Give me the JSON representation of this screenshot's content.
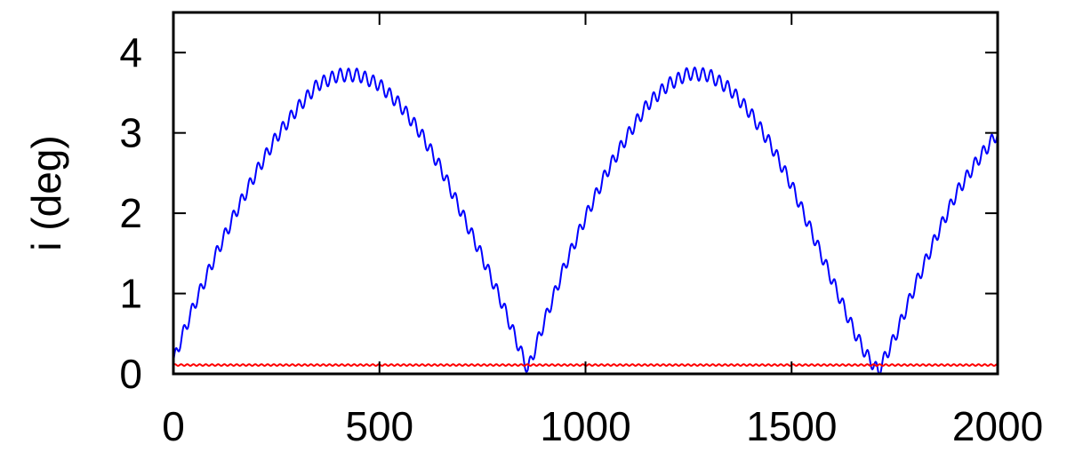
{
  "chart_data": {
    "type": "line",
    "title": "",
    "xlabel": "",
    "ylabel": "i (deg)",
    "xlim": [
      0,
      2000
    ],
    "ylim": [
      0,
      4.5
    ],
    "xticks": [
      0,
      500,
      1000,
      1500,
      2000
    ],
    "xtick_labels": [
      "0",
      "500",
      "1000",
      "1500",
      "2000"
    ],
    "yticks": [
      0,
      1,
      2,
      3,
      4
    ],
    "ytick_labels": [
      "0",
      "1",
      "2",
      "3",
      "4"
    ],
    "grid": false,
    "legend": "none",
    "series": [
      {
        "color": "#0000ff",
        "x": [
          0,
          20,
          50,
          100,
          150,
          200,
          250,
          300,
          350,
          400,
          450,
          500,
          550,
          600,
          650,
          700,
          750,
          800,
          830,
          860,
          900,
          950,
          1000,
          1050,
          1100,
          1150,
          1200,
          1250,
          1300,
          1350,
          1400,
          1450,
          1500,
          1550,
          1600,
          1650,
          1680,
          1710,
          1750,
          1800,
          1850,
          1900,
          1950,
          2000
        ],
        "y": [
          0.15,
          0.45,
          0.85,
          1.45,
          2.0,
          2.5,
          2.95,
          3.3,
          3.6,
          3.72,
          3.72,
          3.6,
          3.35,
          3.0,
          2.55,
          2.0,
          1.45,
          0.85,
          0.45,
          0.05,
          0.65,
          1.35,
          1.95,
          2.5,
          2.95,
          3.35,
          3.6,
          3.74,
          3.72,
          3.55,
          3.25,
          2.85,
          2.35,
          1.75,
          1.15,
          0.55,
          0.25,
          0.03,
          0.45,
          1.1,
          1.7,
          2.25,
          2.65,
          3.0
        ],
        "oscillation_amplitude": 0.08,
        "oscillation_period": 20
      },
      {
        "color": "#ff0000",
        "x": [
          0,
          2000
        ],
        "y": [
          0.11,
          0.11
        ],
        "oscillation_amplitude": 0.01,
        "oscillation_period": 15
      }
    ]
  }
}
